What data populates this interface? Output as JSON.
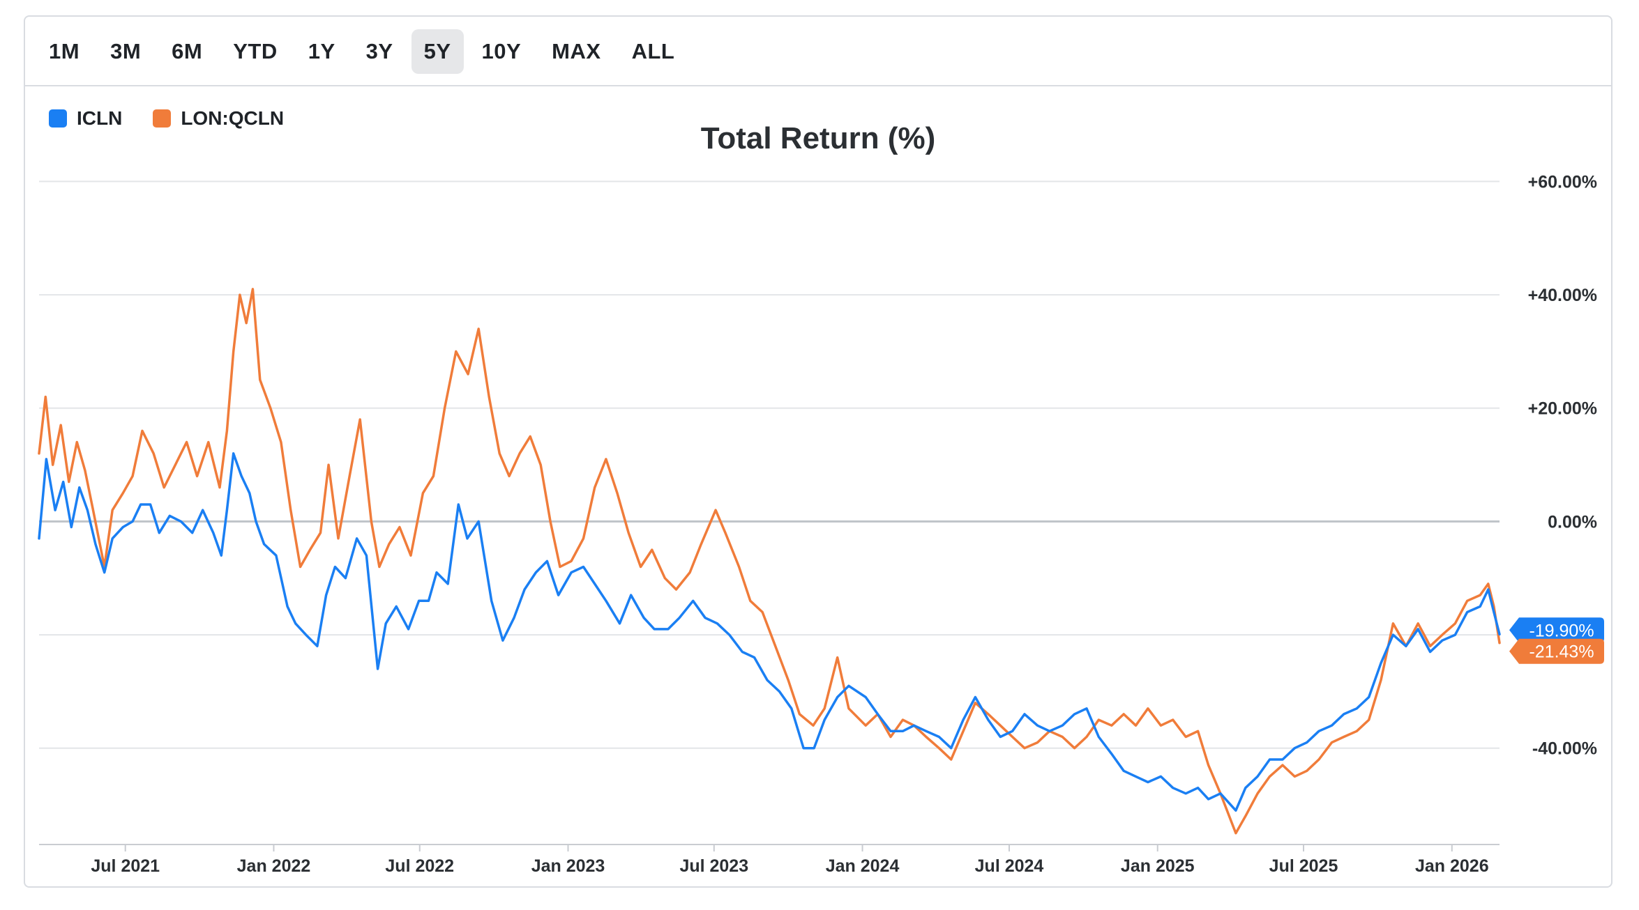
{
  "range_buttons": [
    {
      "label": "1M",
      "active": false
    },
    {
      "label": "3M",
      "active": false
    },
    {
      "label": "6M",
      "active": false
    },
    {
      "label": "YTD",
      "active": false
    },
    {
      "label": "1Y",
      "active": false
    },
    {
      "label": "3Y",
      "active": false
    },
    {
      "label": "5Y",
      "active": true
    },
    {
      "label": "10Y",
      "active": false
    },
    {
      "label": "MAX",
      "active": false
    },
    {
      "label": "ALL",
      "active": false
    }
  ],
  "chart_data": {
    "type": "line",
    "title": "Total Return (%)",
    "xlabel": "",
    "ylabel": "",
    "ylim": [
      -57,
      63
    ],
    "xlim": [
      "2021-03-16",
      "2026-03-01"
    ],
    "y_ticks": [
      {
        "value": 60,
        "label": "+60.00%"
      },
      {
        "value": 40,
        "label": "+40.00%"
      },
      {
        "value": 20,
        "label": "+20.00%"
      },
      {
        "value": 0,
        "label": "0.00%"
      },
      {
        "value": -20,
        "label": ""
      },
      {
        "value": -40,
        "label": "-40.00%"
      }
    ],
    "x_ticks": [
      {
        "date": "2021-07-01",
        "label": "Jul 2021"
      },
      {
        "date": "2022-01-01",
        "label": "Jan 2022"
      },
      {
        "date": "2022-07-01",
        "label": "Jul 2022"
      },
      {
        "date": "2023-01-01",
        "label": "Jan 2023"
      },
      {
        "date": "2023-07-01",
        "label": "Jul 2023"
      },
      {
        "date": "2024-01-01",
        "label": "Jan 2024"
      },
      {
        "date": "2024-07-01",
        "label": "Jul 2024"
      },
      {
        "date": "2025-01-01",
        "label": "Jan 2025"
      },
      {
        "date": "2025-07-01",
        "label": "Jul 2025"
      },
      {
        "date": "2026-01-01",
        "label": "Jan 2026"
      }
    ],
    "series": [
      {
        "name": "ICLN",
        "color": "#1a7ff3",
        "end_label": "-19.90%",
        "points": [
          [
            "2021-03-16",
            -3
          ],
          [
            "2021-03-25",
            11
          ],
          [
            "2021-04-05",
            2
          ],
          [
            "2021-04-15",
            7
          ],
          [
            "2021-04-25",
            -1
          ],
          [
            "2021-05-05",
            6
          ],
          [
            "2021-05-15",
            2
          ],
          [
            "2021-05-25",
            -4
          ],
          [
            "2021-06-05",
            -9
          ],
          [
            "2021-06-15",
            -3
          ],
          [
            "2021-06-28",
            -1
          ],
          [
            "2021-07-10",
            0
          ],
          [
            "2021-07-20",
            3
          ],
          [
            "2021-08-01",
            3
          ],
          [
            "2021-08-12",
            -2
          ],
          [
            "2021-08-25",
            1
          ],
          [
            "2021-09-08",
            0
          ],
          [
            "2021-09-22",
            -2
          ],
          [
            "2021-10-05",
            2
          ],
          [
            "2021-10-18",
            -2
          ],
          [
            "2021-10-28",
            -6
          ],
          [
            "2021-11-04",
            2
          ],
          [
            "2021-11-12",
            12
          ],
          [
            "2021-11-22",
            8
          ],
          [
            "2021-12-02",
            5
          ],
          [
            "2021-12-10",
            0
          ],
          [
            "2021-12-20",
            -4
          ],
          [
            "2022-01-04",
            -6
          ],
          [
            "2022-01-18",
            -15
          ],
          [
            "2022-01-28",
            -18
          ],
          [
            "2022-02-10",
            -20
          ],
          [
            "2022-02-24",
            -22
          ],
          [
            "2022-03-07",
            -13
          ],
          [
            "2022-03-18",
            -8
          ],
          [
            "2022-03-31",
            -10
          ],
          [
            "2022-04-14",
            -3
          ],
          [
            "2022-04-26",
            -6
          ],
          [
            "2022-05-10",
            -26
          ],
          [
            "2022-05-20",
            -18
          ],
          [
            "2022-06-02",
            -15
          ],
          [
            "2022-06-17",
            -19
          ],
          [
            "2022-06-30",
            -14
          ],
          [
            "2022-07-12",
            -14
          ],
          [
            "2022-07-22",
            -9
          ],
          [
            "2022-08-05",
            -11
          ],
          [
            "2022-08-18",
            3
          ],
          [
            "2022-08-29",
            -3
          ],
          [
            "2022-09-12",
            0
          ],
          [
            "2022-09-28",
            -14
          ],
          [
            "2022-10-12",
            -21
          ],
          [
            "2022-10-26",
            -17
          ],
          [
            "2022-11-08",
            -12
          ],
          [
            "2022-11-22",
            -9
          ],
          [
            "2022-12-06",
            -7
          ],
          [
            "2022-12-20",
            -13
          ],
          [
            "2023-01-05",
            -9
          ],
          [
            "2023-01-20",
            -8
          ],
          [
            "2023-02-03",
            -11
          ],
          [
            "2023-02-17",
            -14
          ],
          [
            "2023-03-06",
            -18
          ],
          [
            "2023-03-20",
            -13
          ],
          [
            "2023-04-05",
            -17
          ],
          [
            "2023-04-18",
            -19
          ],
          [
            "2023-05-05",
            -19
          ],
          [
            "2023-05-19",
            -17
          ],
          [
            "2023-06-05",
            -14
          ],
          [
            "2023-06-20",
            -17
          ],
          [
            "2023-07-05",
            -18
          ],
          [
            "2023-07-20",
            -20
          ],
          [
            "2023-08-05",
            -23
          ],
          [
            "2023-08-20",
            -24
          ],
          [
            "2023-09-05",
            -28
          ],
          [
            "2023-09-20",
            -30
          ],
          [
            "2023-10-05",
            -33
          ],
          [
            "2023-10-20",
            -40
          ],
          [
            "2023-11-02",
            -40
          ],
          [
            "2023-11-15",
            -35
          ],
          [
            "2023-12-01",
            -31
          ],
          [
            "2023-12-15",
            -29
          ],
          [
            "2024-01-05",
            -31
          ],
          [
            "2024-01-20",
            -34
          ],
          [
            "2024-02-05",
            -37
          ],
          [
            "2024-02-20",
            -37
          ],
          [
            "2024-03-05",
            -36
          ],
          [
            "2024-03-20",
            -37
          ],
          [
            "2024-04-05",
            -38
          ],
          [
            "2024-04-20",
            -40
          ],
          [
            "2024-05-05",
            -35
          ],
          [
            "2024-05-20",
            -31
          ],
          [
            "2024-06-05",
            -35
          ],
          [
            "2024-06-20",
            -38
          ],
          [
            "2024-07-05",
            -37
          ],
          [
            "2024-07-20",
            -34
          ],
          [
            "2024-08-05",
            -36
          ],
          [
            "2024-08-20",
            -37
          ],
          [
            "2024-09-05",
            -36
          ],
          [
            "2024-09-20",
            -34
          ],
          [
            "2024-10-05",
            -33
          ],
          [
            "2024-10-20",
            -38
          ],
          [
            "2024-11-05",
            -41
          ],
          [
            "2024-11-20",
            -44
          ],
          [
            "2024-12-05",
            -45
          ],
          [
            "2024-12-20",
            -46
          ],
          [
            "2025-01-05",
            -45
          ],
          [
            "2025-01-20",
            -47
          ],
          [
            "2025-02-05",
            -48
          ],
          [
            "2025-02-20",
            -47
          ],
          [
            "2025-03-05",
            -49
          ],
          [
            "2025-03-20",
            -48
          ],
          [
            "2025-04-08",
            -51
          ],
          [
            "2025-04-20",
            -47
          ],
          [
            "2025-05-05",
            -45
          ],
          [
            "2025-05-20",
            -42
          ],
          [
            "2025-06-05",
            -42
          ],
          [
            "2025-06-20",
            -40
          ],
          [
            "2025-07-05",
            -39
          ],
          [
            "2025-07-20",
            -37
          ],
          [
            "2025-08-05",
            -36
          ],
          [
            "2025-08-20",
            -34
          ],
          [
            "2025-09-05",
            -33
          ],
          [
            "2025-09-20",
            -31
          ],
          [
            "2025-10-05",
            -25
          ],
          [
            "2025-10-20",
            -20
          ],
          [
            "2025-11-05",
            -22
          ],
          [
            "2025-11-20",
            -19
          ],
          [
            "2025-12-05",
            -23
          ],
          [
            "2025-12-20",
            -21
          ],
          [
            "2026-01-05",
            -20
          ],
          [
            "2026-01-20",
            -16
          ],
          [
            "2026-02-05",
            -15
          ],
          [
            "2026-02-15",
            -12
          ],
          [
            "2026-02-22",
            -16
          ],
          [
            "2026-03-01",
            -19.9
          ]
        ]
      },
      {
        "name": "LON:QCLN",
        "color": "#f07c3a",
        "end_label": "-21.43%",
        "points": [
          [
            "2021-03-16",
            12
          ],
          [
            "2021-03-24",
            22
          ],
          [
            "2021-04-02",
            10
          ],
          [
            "2021-04-12",
            17
          ],
          [
            "2021-04-22",
            7
          ],
          [
            "2021-05-02",
            14
          ],
          [
            "2021-05-12",
            9
          ],
          [
            "2021-05-22",
            2
          ],
          [
            "2021-06-05",
            -8
          ],
          [
            "2021-06-15",
            2
          ],
          [
            "2021-06-28",
            5
          ],
          [
            "2021-07-10",
            8
          ],
          [
            "2021-07-22",
            16
          ],
          [
            "2021-08-05",
            12
          ],
          [
            "2021-08-18",
            6
          ],
          [
            "2021-09-01",
            10
          ],
          [
            "2021-09-15",
            14
          ],
          [
            "2021-09-28",
            8
          ],
          [
            "2021-10-12",
            14
          ],
          [
            "2021-10-26",
            6
          ],
          [
            "2021-11-04",
            16
          ],
          [
            "2021-11-12",
            30
          ],
          [
            "2021-11-20",
            40
          ],
          [
            "2021-11-28",
            35
          ],
          [
            "2021-12-06",
            41
          ],
          [
            "2021-12-15",
            25
          ],
          [
            "2021-12-28",
            20
          ],
          [
            "2022-01-10",
            14
          ],
          [
            "2022-01-22",
            2
          ],
          [
            "2022-02-03",
            -8
          ],
          [
            "2022-02-15",
            -5
          ],
          [
            "2022-02-28",
            -2
          ],
          [
            "2022-03-10",
            10
          ],
          [
            "2022-03-22",
            -3
          ],
          [
            "2022-04-05",
            8
          ],
          [
            "2022-04-18",
            18
          ],
          [
            "2022-05-02",
            0
          ],
          [
            "2022-05-12",
            -8
          ],
          [
            "2022-05-24",
            -4
          ],
          [
            "2022-06-06",
            -1
          ],
          [
            "2022-06-20",
            -6
          ],
          [
            "2022-07-05",
            5
          ],
          [
            "2022-07-18",
            8
          ],
          [
            "2022-08-01",
            20
          ],
          [
            "2022-08-15",
            30
          ],
          [
            "2022-08-30",
            26
          ],
          [
            "2022-09-12",
            34
          ],
          [
            "2022-09-25",
            22
          ],
          [
            "2022-10-08",
            12
          ],
          [
            "2022-10-20",
            8
          ],
          [
            "2022-11-02",
            12
          ],
          [
            "2022-11-15",
            15
          ],
          [
            "2022-11-28",
            10
          ],
          [
            "2022-12-10",
            0
          ],
          [
            "2022-12-22",
            -8
          ],
          [
            "2023-01-05",
            -7
          ],
          [
            "2023-01-20",
            -3
          ],
          [
            "2023-02-03",
            6
          ],
          [
            "2023-02-17",
            11
          ],
          [
            "2023-03-03",
            5
          ],
          [
            "2023-03-17",
            -2
          ],
          [
            "2023-04-01",
            -8
          ],
          [
            "2023-04-15",
            -5
          ],
          [
            "2023-05-01",
            -10
          ],
          [
            "2023-05-15",
            -12
          ],
          [
            "2023-06-01",
            -9
          ],
          [
            "2023-06-15",
            -4
          ],
          [
            "2023-07-03",
            2
          ],
          [
            "2023-07-15",
            -2
          ],
          [
            "2023-08-01",
            -8
          ],
          [
            "2023-08-15",
            -14
          ],
          [
            "2023-08-30",
            -16
          ],
          [
            "2023-09-15",
            -22
          ],
          [
            "2023-10-01",
            -28
          ],
          [
            "2023-10-15",
            -34
          ],
          [
            "2023-11-01",
            -36
          ],
          [
            "2023-11-15",
            -33
          ],
          [
            "2023-12-01",
            -24
          ],
          [
            "2023-12-15",
            -33
          ],
          [
            "2024-01-05",
            -36
          ],
          [
            "2024-01-20",
            -34
          ],
          [
            "2024-02-05",
            -38
          ],
          [
            "2024-02-20",
            -35
          ],
          [
            "2024-03-05",
            -36
          ],
          [
            "2024-03-20",
            -38
          ],
          [
            "2024-04-05",
            -40
          ],
          [
            "2024-04-20",
            -42
          ],
          [
            "2024-05-05",
            -37
          ],
          [
            "2024-05-20",
            -32
          ],
          [
            "2024-06-05",
            -34
          ],
          [
            "2024-06-20",
            -36
          ],
          [
            "2024-07-05",
            -38
          ],
          [
            "2024-07-20",
            -40
          ],
          [
            "2024-08-05",
            -39
          ],
          [
            "2024-08-20",
            -37
          ],
          [
            "2024-09-05",
            -38
          ],
          [
            "2024-09-20",
            -40
          ],
          [
            "2024-10-05",
            -38
          ],
          [
            "2024-10-20",
            -35
          ],
          [
            "2024-11-05",
            -36
          ],
          [
            "2024-11-20",
            -34
          ],
          [
            "2024-12-05",
            -36
          ],
          [
            "2024-12-20",
            -33
          ],
          [
            "2025-01-05",
            -36
          ],
          [
            "2025-01-20",
            -35
          ],
          [
            "2025-02-05",
            -38
          ],
          [
            "2025-02-20",
            -37
          ],
          [
            "2025-03-05",
            -43
          ],
          [
            "2025-03-20",
            -48
          ],
          [
            "2025-04-08",
            -55
          ],
          [
            "2025-04-20",
            -52
          ],
          [
            "2025-05-05",
            -48
          ],
          [
            "2025-05-20",
            -45
          ],
          [
            "2025-06-05",
            -43
          ],
          [
            "2025-06-20",
            -45
          ],
          [
            "2025-07-05",
            -44
          ],
          [
            "2025-07-20",
            -42
          ],
          [
            "2025-08-05",
            -39
          ],
          [
            "2025-08-20",
            -38
          ],
          [
            "2025-09-05",
            -37
          ],
          [
            "2025-09-20",
            -35
          ],
          [
            "2025-10-05",
            -28
          ],
          [
            "2025-10-20",
            -18
          ],
          [
            "2025-11-05",
            -22
          ],
          [
            "2025-11-20",
            -18
          ],
          [
            "2025-12-05",
            -22
          ],
          [
            "2025-12-20",
            -20
          ],
          [
            "2026-01-05",
            -18
          ],
          [
            "2026-01-20",
            -14
          ],
          [
            "2026-02-05",
            -13
          ],
          [
            "2026-02-15",
            -11
          ],
          [
            "2026-02-22",
            -15
          ],
          [
            "2026-03-01",
            -21.43
          ]
        ]
      }
    ]
  }
}
